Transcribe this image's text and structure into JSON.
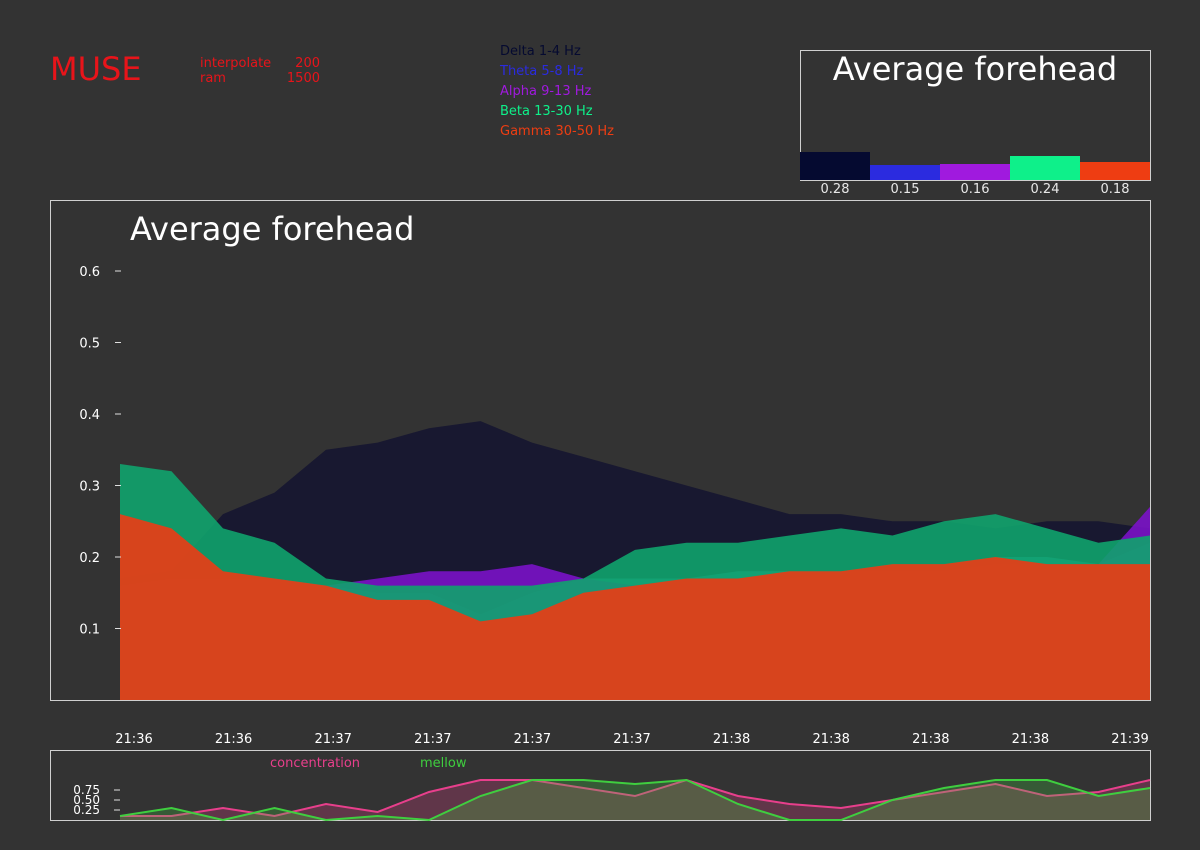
{
  "header": {
    "title": "MUSE",
    "stats": [
      {
        "label": "interpolate",
        "value": "200"
      },
      {
        "label": "ram",
        "value": "1500"
      }
    ]
  },
  "legend": [
    {
      "label": "Delta 1-4 Hz",
      "color": "#050a30"
    },
    {
      "label": "Theta 5-8 Hz",
      "color": "#2b2bdf"
    },
    {
      "label": "Alpha 9-13 Hz",
      "color": "#a01ade"
    },
    {
      "label": "Beta 13-30 Hz",
      "color": "#0ef08a"
    },
    {
      "label": "Gamma 30-50 Hz",
      "color": "#ee3d12"
    }
  ],
  "chart_data": [
    {
      "type": "bar",
      "title": "Average forehead",
      "categories": [
        "Delta 1-4 Hz",
        "Theta 5-8 Hz",
        "Alpha 9-13 Hz",
        "Beta 13-30 Hz",
        "Gamma 30-50 Hz"
      ],
      "values": [
        0.28,
        0.15,
        0.16,
        0.24,
        0.18
      ],
      "value_labels": [
        "0.28",
        "0.15",
        "0.16",
        "0.24",
        "0.18"
      ],
      "colors": [
        "#050a30",
        "#2b2bdf",
        "#a01ade",
        "#0ef08a",
        "#ee3d12"
      ]
    },
    {
      "type": "area",
      "title": "Average forehead",
      "ylim": [
        0,
        0.6
      ],
      "yticks": [
        0.1,
        0.2,
        0.3,
        0.4,
        0.5,
        0.6
      ],
      "ytick_labels": [
        "0.1",
        "0.2",
        "0.3",
        "0.4",
        "0.5",
        "0.6"
      ],
      "x_tick_labels": [
        "21:36",
        "21:36",
        "21:37",
        "21:37",
        "21:37",
        "21:37",
        "21:38",
        "21:38",
        "21:38",
        "21:38",
        "21:39"
      ],
      "x": [
        0,
        0.05,
        0.1,
        0.15,
        0.2,
        0.25,
        0.3,
        0.35,
        0.4,
        0.45,
        0.5,
        0.55,
        0.6,
        0.65,
        0.7,
        0.75,
        0.8,
        0.85,
        0.9,
        0.95,
        1.0
      ],
      "series": [
        {
          "name": "Delta 1-4 Hz",
          "color": "#151530",
          "values": [
            0.17,
            0.18,
            0.26,
            0.29,
            0.35,
            0.36,
            0.38,
            0.39,
            0.36,
            0.34,
            0.32,
            0.3,
            0.28,
            0.26,
            0.26,
            0.25,
            0.25,
            0.24,
            0.25,
            0.25,
            0.24
          ]
        },
        {
          "name": "Theta 5-8 Hz",
          "color": "#2f9fb8",
          "values": [
            0.16,
            0.17,
            0.17,
            0.17,
            0.16,
            0.15,
            0.15,
            0.12,
            0.15,
            0.17,
            0.17,
            0.17,
            0.18,
            0.18,
            0.18,
            0.19,
            0.19,
            0.2,
            0.2,
            0.19,
            0.22
          ]
        },
        {
          "name": "Alpha 9-13 Hz",
          "color": "#7a12c8",
          "values": [
            0.16,
            0.17,
            0.17,
            0.17,
            0.16,
            0.17,
            0.18,
            0.18,
            0.19,
            0.17,
            0.16,
            0.17,
            0.17,
            0.17,
            0.18,
            0.18,
            0.18,
            0.19,
            0.19,
            0.19,
            0.27
          ]
        },
        {
          "name": "Beta 13-30 Hz",
          "color": "#0fa36d",
          "values": [
            0.33,
            0.32,
            0.24,
            0.22,
            0.17,
            0.16,
            0.16,
            0.16,
            0.16,
            0.17,
            0.21,
            0.22,
            0.22,
            0.23,
            0.24,
            0.23,
            0.25,
            0.26,
            0.24,
            0.22,
            0.23
          ]
        },
        {
          "name": "Gamma 30-50 Hz",
          "color": "#e23f18",
          "values": [
            0.26,
            0.24,
            0.18,
            0.17,
            0.16,
            0.14,
            0.14,
            0.11,
            0.12,
            0.15,
            0.16,
            0.17,
            0.17,
            0.18,
            0.18,
            0.19,
            0.19,
            0.2,
            0.19,
            0.19,
            0.19
          ]
        }
      ]
    },
    {
      "type": "area",
      "ylim": [
        0,
        1
      ],
      "yticks": [
        0.25,
        0.5,
        0.75
      ],
      "ytick_labels": [
        "0.25",
        "0.50",
        "0.75"
      ],
      "x": [
        0,
        0.05,
        0.1,
        0.15,
        0.2,
        0.25,
        0.3,
        0.35,
        0.4,
        0.45,
        0.5,
        0.55,
        0.6,
        0.65,
        0.7,
        0.75,
        0.8,
        0.85,
        0.9,
        0.95,
        1.0
      ],
      "series": [
        {
          "name": "concentration",
          "color": "#e83f8c",
          "values": [
            0.1,
            0.1,
            0.3,
            0.1,
            0.4,
            0.2,
            0.7,
            1.0,
            1.0,
            0.8,
            0.6,
            1.0,
            0.6,
            0.4,
            0.3,
            0.5,
            0.7,
            0.9,
            0.6,
            0.7,
            1.0
          ]
        },
        {
          "name": "mellow",
          "color": "#3fce3f",
          "values": [
            0.1,
            0.3,
            0.0,
            0.3,
            0.0,
            0.1,
            0.0,
            0.6,
            1.0,
            1.0,
            0.9,
            1.0,
            0.4,
            0.0,
            0.0,
            0.5,
            0.8,
            1.0,
            1.0,
            0.6,
            0.8
          ]
        }
      ]
    }
  ]
}
